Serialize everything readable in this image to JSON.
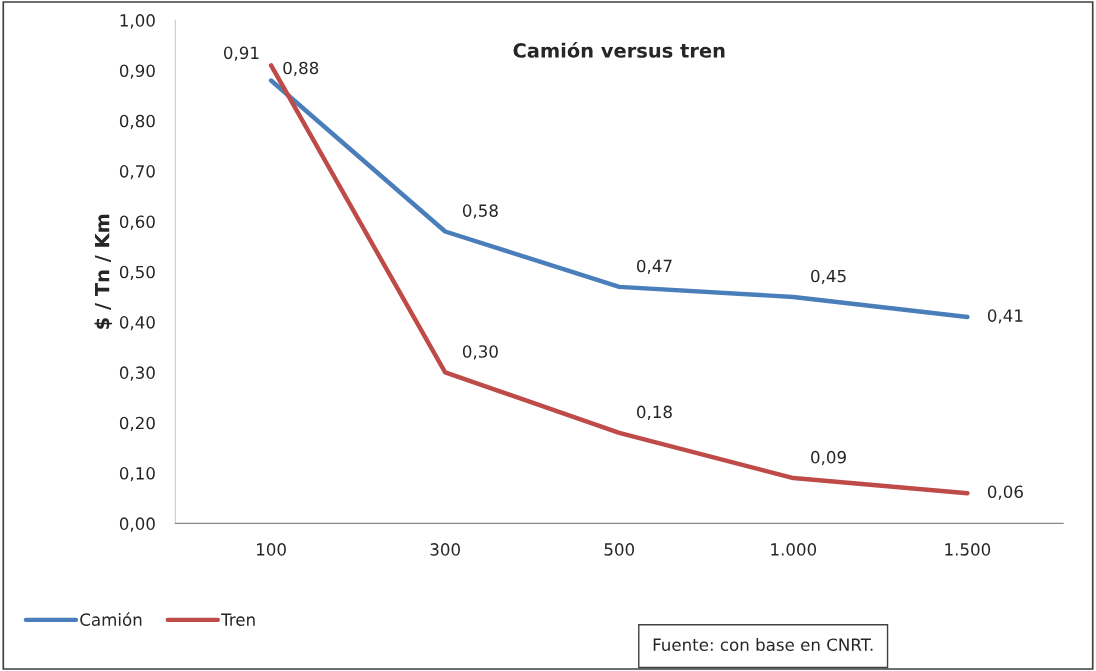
{
  "chart_data": {
    "type": "line",
    "title": "Camión versus tren",
    "ylabel": "$ / Tn / Km",
    "categories": [
      "100",
      "300",
      "500",
      "1.000",
      "1.500"
    ],
    "series": [
      {
        "name": "Camión",
        "color": "#4a7ebb",
        "values": [
          0.88,
          0.58,
          0.47,
          0.45,
          0.41
        ],
        "value_labels": [
          "0,88",
          "0,58",
          "0,47",
          "0,45",
          "0,41"
        ]
      },
      {
        "name": "Tren",
        "color": "#be4b48",
        "values": [
          0.91,
          0.3,
          0.18,
          0.09,
          0.06
        ],
        "value_labels": [
          "0,91",
          "0,30",
          "0,18",
          "0,09",
          "0,06"
        ]
      }
    ],
    "ylim": [
      0,
      1
    ],
    "yticks": [
      {
        "value": 0,
        "label": "0,00"
      },
      {
        "value": 0.1,
        "label": "0,10"
      },
      {
        "value": 0.2,
        "label": "0,20"
      },
      {
        "value": 0.3,
        "label": "0,30"
      },
      {
        "value": 0.4,
        "label": "0,40"
      },
      {
        "value": 0.5,
        "label": "0,50"
      },
      {
        "value": 0.6,
        "label": "0,60"
      },
      {
        "value": 0.7,
        "label": "0,70"
      },
      {
        "value": 0.8,
        "label": "0,80"
      },
      {
        "value": 0.9,
        "label": "0,90"
      },
      {
        "value": 1,
        "label": "1,00"
      }
    ],
    "grid": false,
    "legend": "bottom left",
    "marker": "none",
    "line_style": "solid",
    "annotations": [
      "Fuente: con base en CNRT."
    ]
  }
}
